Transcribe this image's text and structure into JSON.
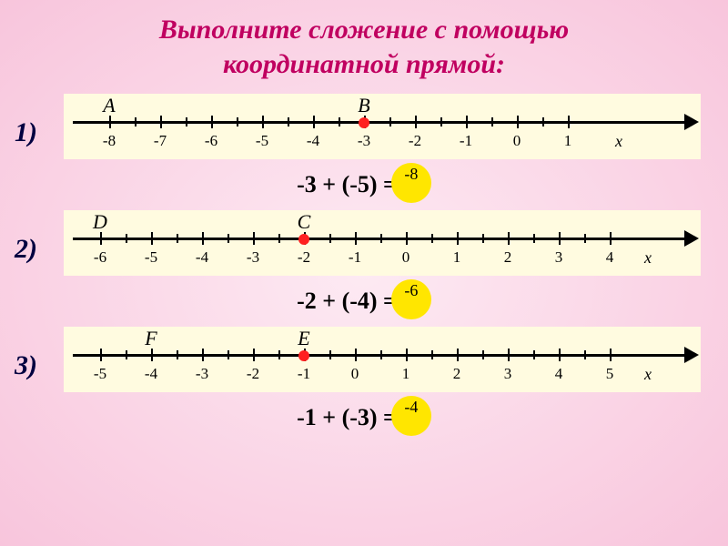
{
  "title_line1": "Выполните сложение с помощью",
  "title_line2": "координатной  прямой:",
  "axis_var": "х",
  "problems": [
    {
      "num": "1)",
      "ticks": [
        -8,
        -7,
        -6,
        -5,
        -4,
        -3,
        -2,
        -1,
        0,
        1
      ],
      "points": [
        {
          "label": "A",
          "at": -8
        },
        {
          "label": "В",
          "at": -3,
          "dot": true
        }
      ],
      "equation": "-3 + (-5) =",
      "answer": "-8",
      "layout": {
        "start": 50,
        "step": 56,
        "x_label_offset": 56
      }
    },
    {
      "num": "2)",
      "ticks": [
        -6,
        -5,
        -4,
        -3,
        -2,
        -1,
        0,
        1,
        2,
        3,
        4
      ],
      "points": [
        {
          "label": "D",
          "at": -6
        },
        {
          "label": "С",
          "at": -2,
          "dot": true
        }
      ],
      "equation": "-2 + (-4) =",
      "answer": "-6",
      "layout": {
        "start": 40,
        "step": 56,
        "x_label_offset": 42
      }
    },
    {
      "num": "3)",
      "ticks": [
        -5,
        -4,
        -3,
        -2,
        -1,
        0,
        1,
        2,
        3,
        4,
        5
      ],
      "points": [
        {
          "label": "F",
          "at": -4
        },
        {
          "label": "E",
          "at": -1,
          "dot": true
        }
      ],
      "equation": "-1 + (-3) =",
      "answer": "-4",
      "layout": {
        "start": 40,
        "step": 56,
        "x_label_offset": 42
      }
    }
  ],
  "colors": {
    "title": "#c00060",
    "line_bg": "#fffbe0",
    "dot": "#ff2020",
    "answer_bg": "#ffe600"
  }
}
